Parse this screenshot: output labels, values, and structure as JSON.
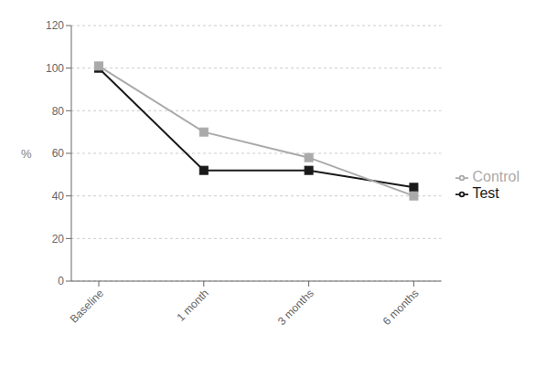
{
  "chart_data": {
    "type": "line",
    "categories": [
      "Baseline",
      "1 month",
      "3 months",
      "6 months"
    ],
    "series": [
      {
        "name": "Test",
        "color": "#1a1a1a",
        "values": [
          100,
          52,
          52,
          44
        ]
      },
      {
        "name": "Control",
        "color": "#aaaaaa",
        "values": [
          101,
          70,
          58,
          40
        ]
      }
    ],
    "marker": "square",
    "ylabel": "%",
    "ylim": [
      0,
      120
    ],
    "yticks": [
      0,
      20,
      40,
      60,
      80,
      100,
      120
    ],
    "grid": true,
    "legend": "right"
  }
}
